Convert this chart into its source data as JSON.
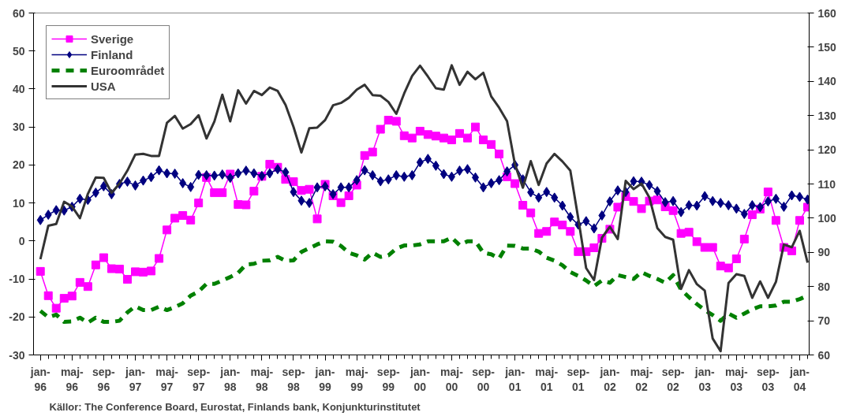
{
  "chart_data": {
    "type": "line",
    "x": [
      "1996-01",
      "1996-02",
      "1996-03",
      "1996-04",
      "1996-05",
      "1996-06",
      "1996-07",
      "1996-08",
      "1996-09",
      "1996-10",
      "1996-11",
      "1996-12",
      "1997-01",
      "1997-02",
      "1997-03",
      "1997-04",
      "1997-05",
      "1997-06",
      "1997-07",
      "1997-08",
      "1997-09",
      "1997-10",
      "1997-11",
      "1997-12",
      "1998-01",
      "1998-02",
      "1998-03",
      "1998-04",
      "1998-05",
      "1998-06",
      "1998-07",
      "1998-08",
      "1998-09",
      "1998-10",
      "1998-11",
      "1998-12",
      "1999-01",
      "1999-02",
      "1999-03",
      "1999-04",
      "1999-05",
      "1999-06",
      "1999-07",
      "1999-08",
      "1999-09",
      "1999-10",
      "1999-11",
      "1999-12",
      "2000-01",
      "2000-02",
      "2000-03",
      "2000-04",
      "2000-05",
      "2000-06",
      "2000-07",
      "2000-08",
      "2000-09",
      "2000-10",
      "2000-11",
      "2000-12",
      "2001-01",
      "2001-02",
      "2001-03",
      "2001-04",
      "2001-05",
      "2001-06",
      "2001-07",
      "2001-08",
      "2001-09",
      "2001-10",
      "2001-11",
      "2001-12",
      "2002-01",
      "2002-02",
      "2002-03",
      "2002-04",
      "2002-05",
      "2002-06",
      "2002-07",
      "2002-08",
      "2002-09",
      "2002-10",
      "2002-11",
      "2002-12",
      "2003-01",
      "2003-02",
      "2003-03",
      "2003-04",
      "2003-05",
      "2003-06",
      "2003-07",
      "2003-08",
      "2003-09",
      "2003-10",
      "2003-11",
      "2003-12",
      "2004-01",
      "2004-02"
    ],
    "series": [
      {
        "name": "Sverige",
        "color": "#ff00ff",
        "marker": "square",
        "line_style": "solid",
        "values": [
          -8.0,
          -14.4,
          -17.7,
          -15.1,
          -14.5,
          -10.9,
          -12.0,
          -6.3,
          -4.4,
          -7.3,
          -7.4,
          -10.1,
          -8.1,
          -8.2,
          -7.9,
          -4.6,
          2.9,
          6.0,
          6.7,
          5.5,
          10.0,
          16.7,
          12.7,
          12.7,
          17.6,
          9.6,
          9.5,
          13.1,
          17.0,
          20.2,
          19.4,
          16.2,
          15.6,
          13.3,
          13.6,
          5.8,
          14.9,
          11.9,
          10.1,
          11.9,
          14.7,
          22.5,
          23.4,
          29.4,
          31.8,
          31.5,
          27.7,
          27.1,
          28.9,
          28.0,
          27.6,
          27.1,
          26.6,
          28.3,
          27.1,
          30.0,
          26.6,
          25.4,
          22.9,
          16.9,
          15.1,
          9.4,
          7.4,
          2.0,
          2.5,
          5.0,
          4.2,
          2.5,
          -2.8,
          -2.8,
          -1.8,
          0.7,
          3.1,
          8.9,
          11.7,
          10.4,
          8.5,
          10.5,
          10.8,
          9.0,
          8.0,
          2.0,
          2.3,
          -0.2,
          -1.7,
          -1.7,
          -6.6,
          -7.1,
          -4.7,
          0.5,
          6.9,
          8.4,
          12.9,
          5.4,
          -1.7,
          -2.6,
          5.4,
          8.9
        ]
      },
      {
        "name": "Finland",
        "color": "#000080",
        "marker": "diamond",
        "line_style": "solid",
        "values": [
          5.5,
          6.9,
          8.1,
          8.0,
          9.0,
          11.1,
          10.8,
          12.7,
          14.4,
          12.3,
          15.0,
          15.6,
          14.6,
          15.9,
          16.8,
          18.6,
          17.8,
          17.7,
          15.2,
          14.2,
          17.4,
          17.3,
          17.2,
          17.5,
          16.6,
          17.8,
          18.5,
          17.8,
          17.1,
          17.8,
          18.9,
          18.1,
          12.9,
          10.6,
          10.0,
          14.1,
          14.4,
          12.3,
          14.1,
          14.1,
          16.0,
          18.6,
          17.3,
          15.7,
          16.2,
          17.3,
          16.9,
          17.3,
          20.7,
          21.6,
          19.8,
          17.6,
          16.9,
          18.5,
          18.9,
          16.7,
          14.1,
          15.2,
          16.0,
          18.3,
          20.0,
          16.2,
          12.8,
          11.4,
          12.9,
          11.4,
          9.3,
          6.3,
          4.3,
          5.2,
          3.3,
          6.7,
          10.4,
          13.3,
          12.9,
          15.7,
          15.6,
          14.7,
          13.1,
          10.2,
          10.5,
          7.6,
          9.4,
          9.3,
          11.8,
          10.5,
          10.0,
          9.4,
          8.5,
          7.1,
          9.4,
          8.9,
          10.4,
          11.1,
          9.0,
          12.0,
          11.6,
          10.9
        ]
      },
      {
        "name": "Euroområdet",
        "color": "#008000",
        "marker": "none",
        "line_style": "dashed",
        "values": [
          -18.4,
          -20.1,
          -19.4,
          -21.3,
          -21.2,
          -20.2,
          -21.5,
          -20.2,
          -21.3,
          -21.3,
          -21.0,
          -18.8,
          -17.2,
          -18.2,
          -18.2,
          -17.3,
          -18.2,
          -17.4,
          -16.4,
          -14.4,
          -13.3,
          -11.3,
          -11.3,
          -10.4,
          -9.5,
          -8.4,
          -6.2,
          -6.0,
          -5.2,
          -5.1,
          -4.2,
          -5.2,
          -5.1,
          -2.9,
          -1.9,
          -0.9,
          -0.1,
          -0.2,
          -1.3,
          -3.1,
          -3.8,
          -4.9,
          -3.1,
          -4.2,
          -3.8,
          -2.0,
          -1.2,
          -1.2,
          -0.9,
          -0.1,
          -0.1,
          -0.1,
          0.9,
          -1.1,
          -0.1,
          -0.1,
          -3.1,
          -3.5,
          -4.6,
          -1.2,
          -1.3,
          -2.0,
          -2.0,
          -2.8,
          -4.4,
          -5.2,
          -6.4,
          -8.2,
          -9.2,
          -10.4,
          -11.9,
          -10.4,
          -11.0,
          -9.0,
          -9.5,
          -10.0,
          -8.2,
          -9.2,
          -10.0,
          -11.0,
          -9.0,
          -12.8,
          -14.8,
          -16.6,
          -18.2,
          -19.5,
          -21.0,
          -19.1,
          -20.2,
          -19.1,
          -18.0,
          -17.2,
          -17.2,
          -17.0,
          -16.0,
          -16.0,
          -15.3,
          -14.4
        ]
      },
      {
        "name": "USA",
        "color": "#333333",
        "marker": "none",
        "line_style": "solid",
        "axis": "y2",
        "values": [
          88.0,
          97.8,
          98.3,
          104.8,
          103.4,
          100.0,
          107.1,
          111.9,
          111.8,
          107.4,
          110.1,
          113.9,
          118.6,
          118.8,
          118.2,
          118.2,
          127.9,
          129.9,
          126.2,
          127.5,
          130.1,
          123.3,
          128.3,
          136.1,
          128.3,
          137.4,
          133.5,
          137.2,
          136.0,
          138.2,
          137.2,
          133.1,
          126.7,
          119.2,
          126.3,
          126.5,
          128.7,
          133.0,
          133.7,
          135.2,
          137.6,
          139.0,
          136.0,
          135.8,
          134.0,
          130.5,
          136.5,
          141.6,
          144.6,
          141.4,
          138.0,
          137.6,
          144.7,
          139.0,
          142.8,
          140.6,
          142.5,
          135.6,
          132.3,
          128.4,
          115.7,
          108.9,
          116.7,
          109.7,
          116.0,
          118.8,
          116.6,
          113.9,
          100.0,
          85.4,
          81.9,
          94.3,
          97.5,
          93.9,
          110.9,
          108.5,
          110.1,
          106.0,
          97.1,
          94.5,
          93.7,
          79.3,
          84.8,
          80.7,
          78.8,
          64.8,
          61.1,
          81.0,
          83.6,
          83.1,
          76.7,
          81.5,
          76.7,
          81.4,
          92.3,
          91.5,
          96.3,
          87.0
        ]
      }
    ],
    "xlim": [
      "1995-12-05",
      "2004-02-07"
    ],
    "xticks": [
      {
        "value": "1996-01",
        "label": "jan-96"
      },
      {
        "value": "1996-05",
        "label": "maj-96"
      },
      {
        "value": "1996-09",
        "label": "sep-96"
      },
      {
        "value": "1997-01",
        "label": "jan-97"
      },
      {
        "value": "1997-05",
        "label": "maj-97"
      },
      {
        "value": "1997-09",
        "label": "sep-97"
      },
      {
        "value": "1998-01",
        "label": "jan-98"
      },
      {
        "value": "1998-05",
        "label": "maj-98"
      },
      {
        "value": "1998-09",
        "label": "sep-98"
      },
      {
        "value": "1999-01",
        "label": "jan-99"
      },
      {
        "value": "1999-05",
        "label": "maj-99"
      },
      {
        "value": "1999-09",
        "label": "sep-99"
      },
      {
        "value": "2000-01",
        "label": "jan-00"
      },
      {
        "value": "2000-05",
        "label": "maj-00"
      },
      {
        "value": "2000-09",
        "label": "sep-00"
      },
      {
        "value": "2001-01",
        "label": "jan-01"
      },
      {
        "value": "2001-05",
        "label": "maj-01"
      },
      {
        "value": "2001-09",
        "label": "sep-01"
      },
      {
        "value": "2002-01",
        "label": "jan-02"
      },
      {
        "value": "2002-05",
        "label": "maj-02"
      },
      {
        "value": "2002-09",
        "label": "sep-02"
      },
      {
        "value": "2003-01",
        "label": "jan-03"
      },
      {
        "value": "2003-05",
        "label": "maj-03"
      },
      {
        "value": "2003-09",
        "label": "sep-03"
      },
      {
        "value": "2004-01",
        "label": "jan-04"
      }
    ],
    "ylim": [
      -30,
      60
    ],
    "yticks": [
      -30,
      -20,
      -10,
      0,
      10,
      20,
      30,
      40,
      50,
      60
    ],
    "y2lim": [
      60,
      160
    ],
    "y2ticks": [
      60,
      70,
      80,
      90,
      100,
      110,
      120,
      130,
      140,
      150,
      160
    ],
    "grid": false,
    "legend": "top left",
    "annotations": [
      "Källor: The Conference Board, Eurostat, Finlands bank, Konjunkturinstitutet"
    ]
  }
}
